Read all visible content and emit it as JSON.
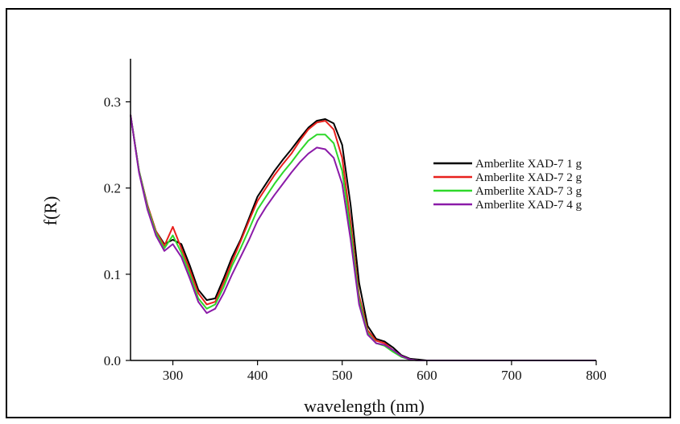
{
  "chart_data": {
    "type": "line",
    "title": "",
    "xlabel": "wavelength (nm)",
    "ylabel": "f(R)",
    "xlim": [
      250,
      800
    ],
    "ylim": [
      0,
      0.35
    ],
    "xticks": [
      300,
      400,
      500,
      600,
      700,
      800
    ],
    "xtick_labels": [
      "300",
      "400",
      "500",
      "600",
      "700",
      "800"
    ],
    "yticks": [
      0.0,
      0.1,
      0.2,
      0.3
    ],
    "ytick_labels": [
      "0.0",
      "0.1",
      "0.2",
      "0.3"
    ],
    "grid": false,
    "legend_position": "right",
    "x": [
      250,
      260,
      270,
      280,
      290,
      300,
      310,
      320,
      330,
      340,
      350,
      360,
      370,
      380,
      390,
      400,
      410,
      420,
      430,
      440,
      450,
      460,
      470,
      480,
      490,
      500,
      510,
      520,
      530,
      540,
      550,
      560,
      570,
      580,
      590,
      600,
      650,
      700,
      750,
      800
    ],
    "series": [
      {
        "name": "Amberlite XAD-7 1 g",
        "color": "#000000",
        "values": [
          0.285,
          0.22,
          0.18,
          0.15,
          0.135,
          0.14,
          0.135,
          0.11,
          0.082,
          0.07,
          0.072,
          0.095,
          0.12,
          0.14,
          0.165,
          0.19,
          0.205,
          0.22,
          0.233,
          0.245,
          0.258,
          0.27,
          0.278,
          0.28,
          0.275,
          0.25,
          0.18,
          0.09,
          0.04,
          0.025,
          0.022,
          0.015,
          0.006,
          0.002,
          0.001,
          0.0,
          0.0,
          0.0,
          0.0,
          0.0
        ]
      },
      {
        "name": "Amberlite XAD-7 2 g",
        "color": "#e8201c",
        "values": [
          0.285,
          0.22,
          0.18,
          0.15,
          0.133,
          0.155,
          0.13,
          0.105,
          0.078,
          0.065,
          0.068,
          0.09,
          0.115,
          0.138,
          0.162,
          0.185,
          0.2,
          0.215,
          0.228,
          0.24,
          0.255,
          0.268,
          0.276,
          0.278,
          0.268,
          0.235,
          0.16,
          0.075,
          0.035,
          0.023,
          0.02,
          0.012,
          0.005,
          0.001,
          0.0,
          0.0,
          0.0,
          0.0,
          0.0,
          0.0
        ]
      },
      {
        "name": "Amberlite XAD-7 3 g",
        "color": "#2ed82a",
        "values": [
          0.285,
          0.22,
          0.178,
          0.148,
          0.13,
          0.145,
          0.125,
          0.1,
          0.072,
          0.06,
          0.065,
          0.085,
          0.11,
          0.13,
          0.152,
          0.175,
          0.19,
          0.205,
          0.218,
          0.23,
          0.243,
          0.255,
          0.262,
          0.262,
          0.252,
          0.22,
          0.15,
          0.07,
          0.032,
          0.02,
          0.017,
          0.01,
          0.004,
          0.001,
          0.0,
          0.0,
          0.0,
          0.0,
          0.0,
          0.0
        ]
      },
      {
        "name": "Amberlite XAD-7 4 g",
        "color": "#8b1aa8",
        "values": [
          0.285,
          0.218,
          0.175,
          0.145,
          0.127,
          0.135,
          0.12,
          0.095,
          0.068,
          0.055,
          0.06,
          0.078,
          0.1,
          0.12,
          0.14,
          0.162,
          0.178,
          0.192,
          0.205,
          0.218,
          0.23,
          0.24,
          0.247,
          0.245,
          0.235,
          0.205,
          0.14,
          0.065,
          0.03,
          0.02,
          0.018,
          0.012,
          0.005,
          0.001,
          0.0,
          0.0,
          0.0,
          0.0,
          0.0,
          0.0
        ]
      }
    ]
  }
}
